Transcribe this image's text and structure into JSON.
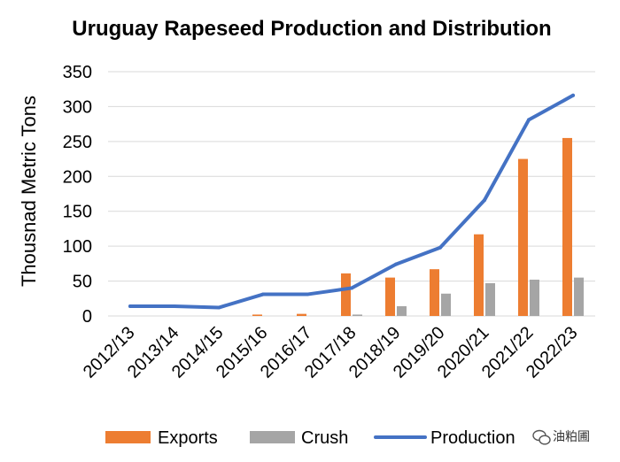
{
  "chart_data": {
    "type": "bar",
    "title": "Uruguay Rapeseed Production and Distribution",
    "xlabel": "",
    "ylabel": "Thousnad Metric Tons",
    "ylim": [
      0,
      350
    ],
    "yticks": [
      0,
      50,
      100,
      150,
      200,
      250,
      300,
      350
    ],
    "grid": true,
    "legend": "bottom",
    "categories": [
      "2012/13",
      "2013/14",
      "2014/15",
      "2015/16",
      "2016/17",
      "2017/18",
      "2018/19",
      "2019/20",
      "2020/21",
      "2021/22",
      "2022/23"
    ],
    "series": [
      {
        "name": "Exports",
        "type": "bar",
        "color": "#ED7D31",
        "values": [
          0,
          0,
          0,
          2,
          3,
          61,
          55,
          67,
          117,
          225,
          255
        ]
      },
      {
        "name": "Crush",
        "type": "bar",
        "color": "#A5A5A5",
        "values": [
          0,
          0,
          0,
          0,
          0,
          2,
          14,
          32,
          47,
          52,
          55
        ]
      },
      {
        "name": "Production",
        "type": "line",
        "color": "#4472C4",
        "values": [
          14,
          14,
          12,
          31,
          31,
          40,
          74,
          98,
          166,
          281,
          316
        ]
      }
    ]
  },
  "watermark": {
    "text": "油粕圃",
    "icon": "wechat-icon"
  }
}
